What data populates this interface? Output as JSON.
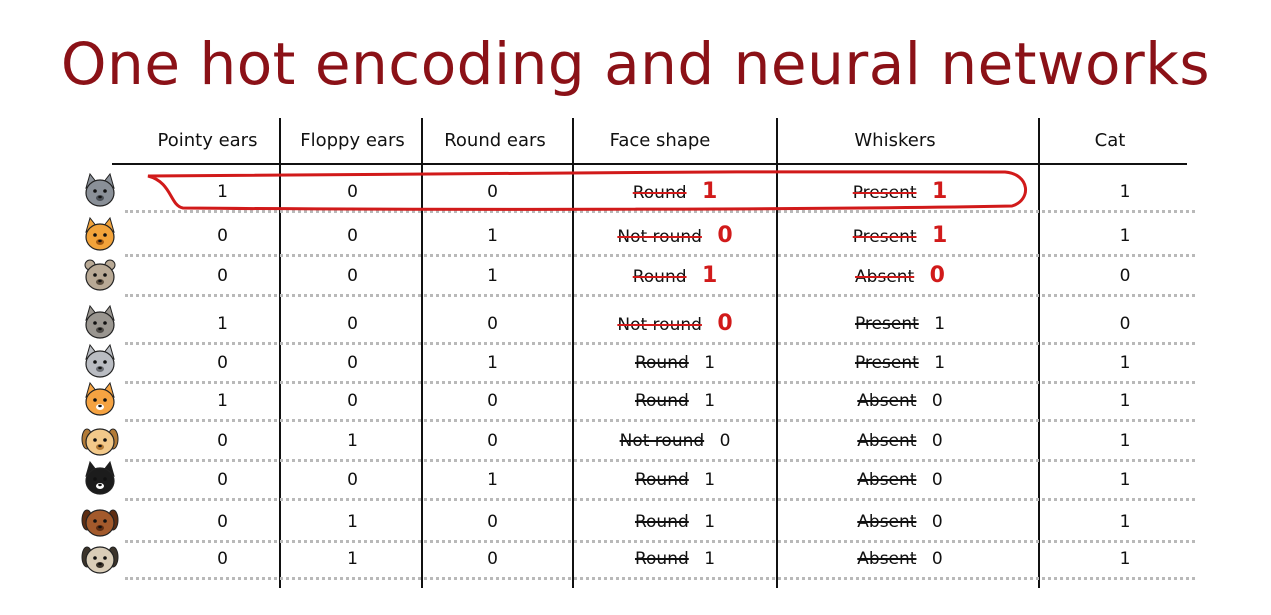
{
  "title": "One hot encoding and neural networks",
  "headers": [
    "Pointy ears",
    "Floppy ears",
    "Round ears",
    "Face shape",
    "Whiskers",
    "Cat"
  ],
  "colors": {
    "title": "#8b1117",
    "annotation": "#d11a1a"
  },
  "rows": [
    {
      "animal": "gray-cat-icon",
      "pointy": "1",
      "floppy": "0",
      "round": "0",
      "face": "Round",
      "face_num": "1",
      "whiskers": "Present",
      "whiskers_num": "1",
      "cat": "1",
      "face_handwritten": true,
      "whiskers_handwritten": true,
      "face_red_strike": true,
      "whiskers_red_strike": true
    },
    {
      "animal": "orange-cat-icon",
      "pointy": "0",
      "floppy": "0",
      "round": "1",
      "face": "Not round",
      "face_num": "0",
      "whiskers": "Present",
      "whiskers_num": "1",
      "cat": "1",
      "face_handwritten": true,
      "whiskers_handwritten": true,
      "face_red_strike": true,
      "whiskers_red_strike": true
    },
    {
      "animal": "bear-dog-icon",
      "pointy": "0",
      "floppy": "0",
      "round": "1",
      "face": "Round",
      "face_num": "1",
      "whiskers": "Absent",
      "whiskers_num": "0",
      "cat": "0",
      "face_handwritten": true,
      "whiskers_handwritten": true,
      "face_red_strike": true,
      "whiskers_red_strike": true
    },
    {
      "animal": "wolf-icon",
      "pointy": "1",
      "floppy": "0",
      "round": "0",
      "face": "Not round",
      "face_num": "0",
      "whiskers": "Present",
      "whiskers_num": "1",
      "cat": "0",
      "face_handwritten": true,
      "whiskers_handwritten": false,
      "face_red_strike": true,
      "whiskers_red_strike": false
    },
    {
      "animal": "gray-kitten-icon",
      "pointy": "0",
      "floppy": "0",
      "round": "1",
      "face": "Round",
      "face_num": "1",
      "whiskers": "Present",
      "whiskers_num": "1",
      "cat": "1",
      "face_handwritten": false,
      "whiskers_handwritten": false,
      "face_red_strike": false,
      "whiskers_red_strike": false
    },
    {
      "animal": "shiba-icon",
      "pointy": "1",
      "floppy": "0",
      "round": "0",
      "face": "Round",
      "face_num": "1",
      "whiskers": "Absent",
      "whiskers_num": "0",
      "cat": "1",
      "face_handwritten": false,
      "whiskers_handwritten": false,
      "face_red_strike": false,
      "whiskers_red_strike": false
    },
    {
      "animal": "golden-dog-icon",
      "pointy": "0",
      "floppy": "1",
      "round": "0",
      "face": "Not round",
      "face_num": "0",
      "whiskers": "Absent",
      "whiskers_num": "0",
      "cat": "1",
      "face_handwritten": false,
      "whiskers_handwritten": false,
      "face_red_strike": false,
      "whiskers_red_strike": false
    },
    {
      "animal": "tuxedo-cat-icon",
      "pointy": "0",
      "floppy": "0",
      "round": "1",
      "face": "Round",
      "face_num": "1",
      "whiskers": "Absent",
      "whiskers_num": "0",
      "cat": "1",
      "face_handwritten": false,
      "whiskers_handwritten": false,
      "face_red_strike": false,
      "whiskers_red_strike": false
    },
    {
      "animal": "brown-dog-icon",
      "pointy": "0",
      "floppy": "1",
      "round": "0",
      "face": "Round",
      "face_num": "1",
      "whiskers": "Absent",
      "whiskers_num": "0",
      "cat": "1",
      "face_handwritten": false,
      "whiskers_handwritten": false,
      "face_red_strike": false,
      "whiskers_red_strike": false
    },
    {
      "animal": "pug-icon",
      "pointy": "0",
      "floppy": "1",
      "round": "0",
      "face": "Round",
      "face_num": "1",
      "whiskers": "Absent",
      "whiskers_num": "0",
      "cat": "1",
      "face_handwritten": false,
      "whiskers_handwritten": false,
      "face_red_strike": false,
      "whiskers_red_strike": false
    }
  ]
}
